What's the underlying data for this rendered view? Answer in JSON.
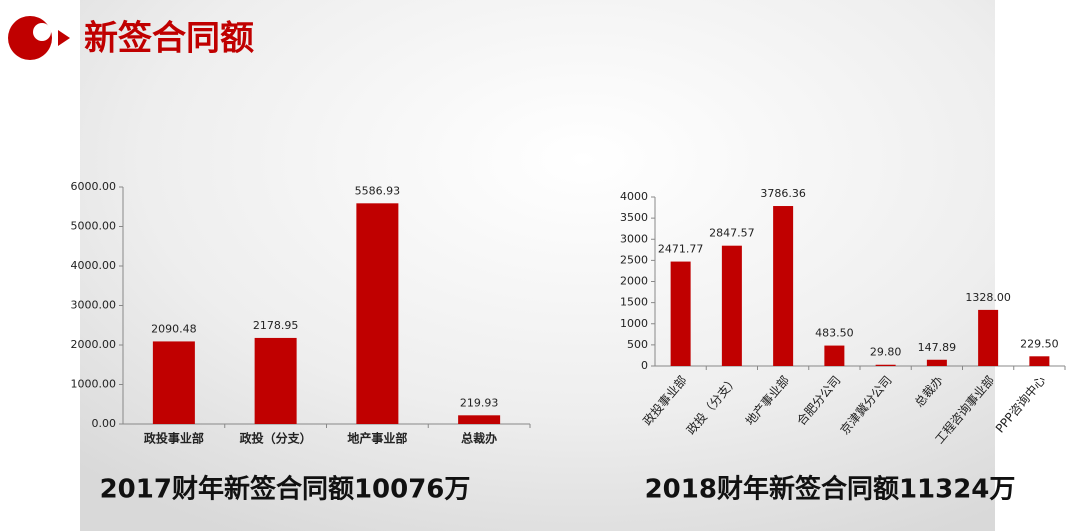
{
  "title": "新签合同额",
  "chart_data": [
    {
      "type": "bar",
      "caption": "2017财年新签合同额10076万",
      "categories": [
        "政投事业部",
        "政投（分支）",
        "地产事业部",
        "总裁办"
      ],
      "values": [
        2090.48,
        2178.95,
        5586.93,
        219.93
      ],
      "color": "#c00000",
      "ylim": [
        0,
        6000
      ],
      "yticks": [
        {
          "value": 0,
          "label": "0.00"
        },
        {
          "value": 1000,
          "label": "1000.00"
        },
        {
          "value": 2000,
          "label": "2000.00"
        },
        {
          "value": 3000,
          "label": "3000.00"
        },
        {
          "value": 4000,
          "label": "4000.00"
        },
        {
          "value": 5000,
          "label": "5000.00"
        },
        {
          "value": 6000,
          "label": "6000.00"
        }
      ]
    },
    {
      "type": "bar",
      "caption": "2018财年新签合同额11324万",
      "categories": [
        "政投事业部",
        "政投（分支）",
        "地产事业部",
        "合肥分公司",
        "京津冀分公司",
        "总裁办",
        "工程咨询事业部",
        "PPP咨询中心"
      ],
      "values": [
        2471.77,
        2847.57,
        3786.36,
        483.5,
        29.8,
        147.89,
        1328,
        229.5
      ],
      "value_labels": [
        "2471.77",
        "2847.57",
        "3786.36",
        "483.50",
        "29.80",
        "147.89",
        "1328.00",
        "229.50"
      ],
      "color": "#c00000",
      "ylim": [
        0,
        4000
      ],
      "yticks": [
        0,
        500,
        1000,
        1500,
        2000,
        2500,
        3000,
        3500,
        4000
      ],
      "rotate_labels": true
    }
  ]
}
